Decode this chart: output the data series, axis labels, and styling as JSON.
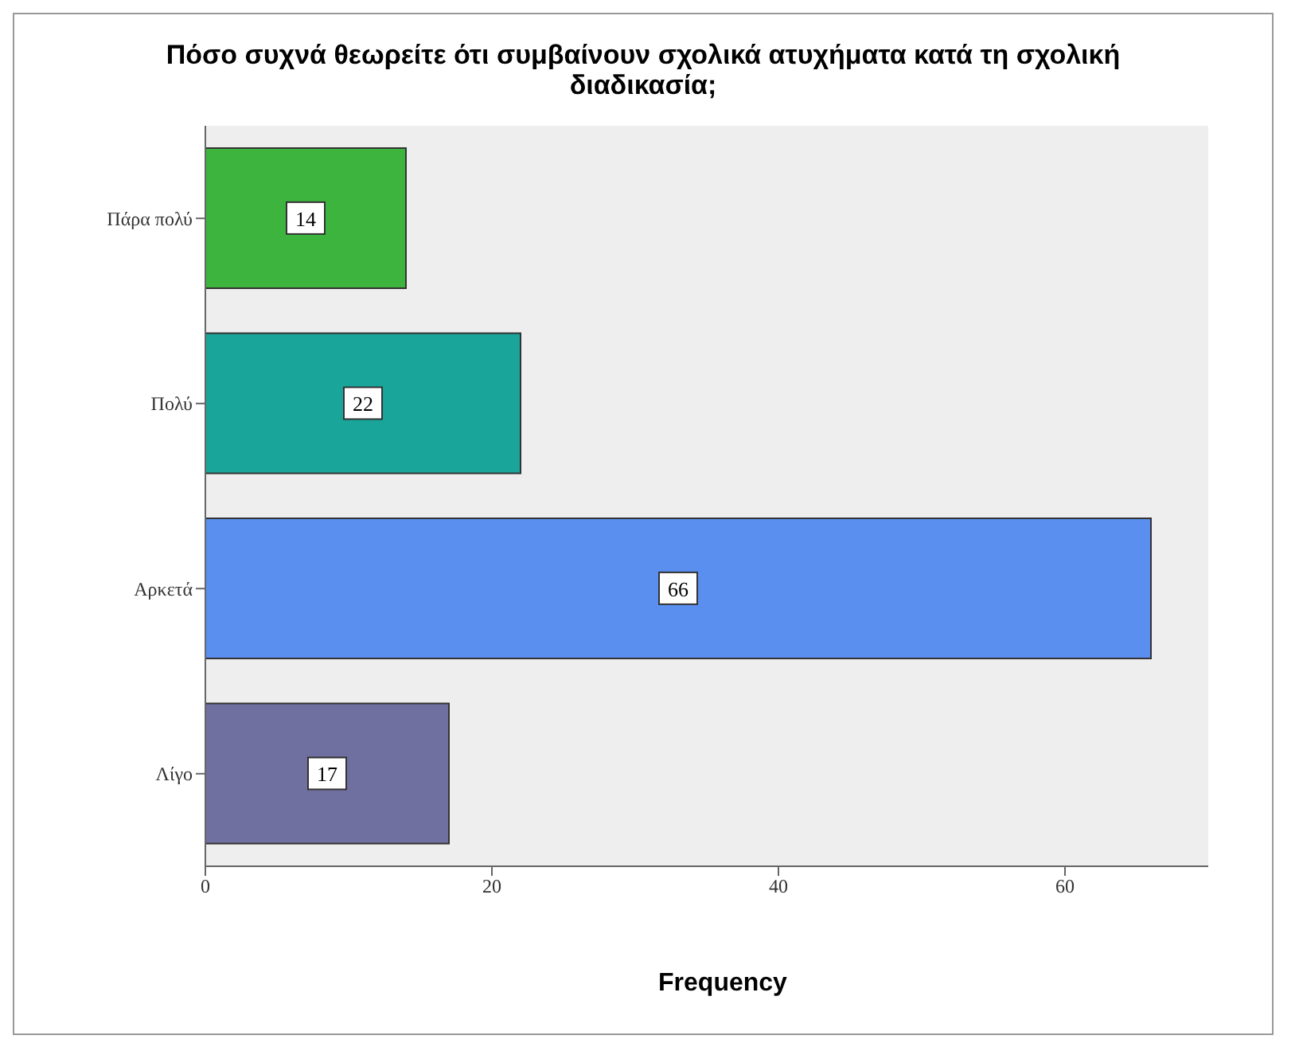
{
  "chart_data": {
    "type": "bar",
    "orientation": "horizontal",
    "title": "Πόσο συχνά θεωρείτε ότι συμβαίνουν σχολικά ατυχήματα κατά τη σχολική διαδικασία;",
    "xlabel": "Frequency",
    "categories": [
      "Πάρα πολύ",
      "Πολύ",
      "Αρκετά",
      "Λίγο"
    ],
    "values": [
      14,
      22,
      66,
      17
    ],
    "colors": [
      "#3db43d",
      "#1aa59a",
      "#5a8ff0",
      "#6f6fa0"
    ],
    "data_labels": true,
    "xlim": [
      0,
      70
    ],
    "xticks": [
      0,
      20,
      40,
      60
    ],
    "grid": false
  }
}
